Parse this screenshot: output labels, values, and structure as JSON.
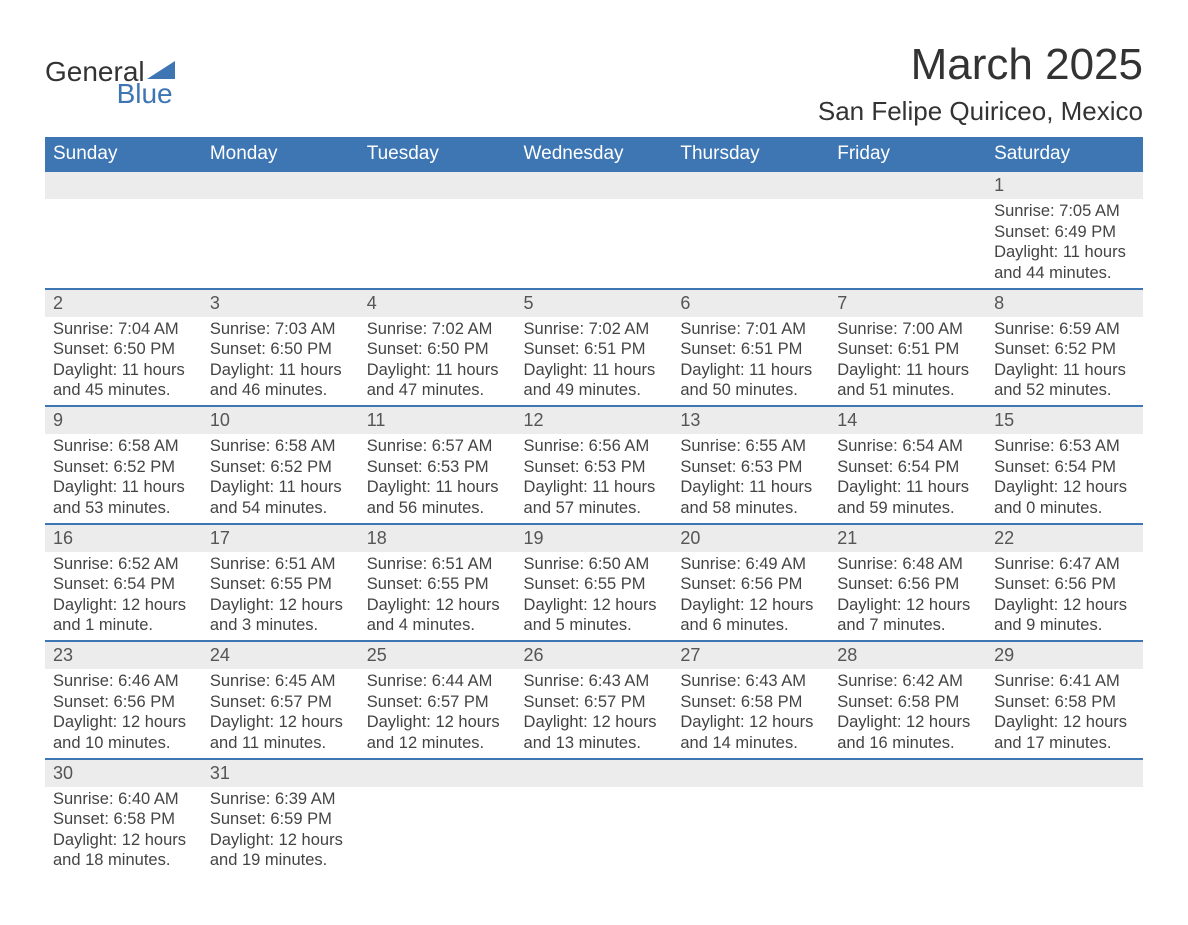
{
  "brand": {
    "name_top": "General",
    "name_bottom": "Blue",
    "accent_color": "#3d76b3",
    "text_color": "#333333"
  },
  "title": "March 2025",
  "location": "San Felipe Quiriceo, Mexico",
  "colors": {
    "header_bg": "#3d76b3",
    "header_text": "#ffffff",
    "daynum_bg": "#ececec",
    "row_border": "#3d76b3",
    "body_text": "#444444",
    "page_bg": "#ffffff"
  },
  "typography": {
    "title_fontsize": 44,
    "location_fontsize": 26,
    "weekday_fontsize": 19,
    "daynum_fontsize": 18,
    "detail_fontsize": 16.5
  },
  "calendar": {
    "type": "table",
    "columns": [
      "Sunday",
      "Monday",
      "Tuesday",
      "Wednesday",
      "Thursday",
      "Friday",
      "Saturday"
    ],
    "weeks": [
      [
        null,
        null,
        null,
        null,
        null,
        null,
        {
          "day": "1",
          "sunrise": "Sunrise: 7:05 AM",
          "sunset": "Sunset: 6:49 PM",
          "daylight1": "Daylight: 11 hours",
          "daylight2": "and 44 minutes."
        }
      ],
      [
        {
          "day": "2",
          "sunrise": "Sunrise: 7:04 AM",
          "sunset": "Sunset: 6:50 PM",
          "daylight1": "Daylight: 11 hours",
          "daylight2": "and 45 minutes."
        },
        {
          "day": "3",
          "sunrise": "Sunrise: 7:03 AM",
          "sunset": "Sunset: 6:50 PM",
          "daylight1": "Daylight: 11 hours",
          "daylight2": "and 46 minutes."
        },
        {
          "day": "4",
          "sunrise": "Sunrise: 7:02 AM",
          "sunset": "Sunset: 6:50 PM",
          "daylight1": "Daylight: 11 hours",
          "daylight2": "and 47 minutes."
        },
        {
          "day": "5",
          "sunrise": "Sunrise: 7:02 AM",
          "sunset": "Sunset: 6:51 PM",
          "daylight1": "Daylight: 11 hours",
          "daylight2": "and 49 minutes."
        },
        {
          "day": "6",
          "sunrise": "Sunrise: 7:01 AM",
          "sunset": "Sunset: 6:51 PM",
          "daylight1": "Daylight: 11 hours",
          "daylight2": "and 50 minutes."
        },
        {
          "day": "7",
          "sunrise": "Sunrise: 7:00 AM",
          "sunset": "Sunset: 6:51 PM",
          "daylight1": "Daylight: 11 hours",
          "daylight2": "and 51 minutes."
        },
        {
          "day": "8",
          "sunrise": "Sunrise: 6:59 AM",
          "sunset": "Sunset: 6:52 PM",
          "daylight1": "Daylight: 11 hours",
          "daylight2": "and 52 minutes."
        }
      ],
      [
        {
          "day": "9",
          "sunrise": "Sunrise: 6:58 AM",
          "sunset": "Sunset: 6:52 PM",
          "daylight1": "Daylight: 11 hours",
          "daylight2": "and 53 minutes."
        },
        {
          "day": "10",
          "sunrise": "Sunrise: 6:58 AM",
          "sunset": "Sunset: 6:52 PM",
          "daylight1": "Daylight: 11 hours",
          "daylight2": "and 54 minutes."
        },
        {
          "day": "11",
          "sunrise": "Sunrise: 6:57 AM",
          "sunset": "Sunset: 6:53 PM",
          "daylight1": "Daylight: 11 hours",
          "daylight2": "and 56 minutes."
        },
        {
          "day": "12",
          "sunrise": "Sunrise: 6:56 AM",
          "sunset": "Sunset: 6:53 PM",
          "daylight1": "Daylight: 11 hours",
          "daylight2": "and 57 minutes."
        },
        {
          "day": "13",
          "sunrise": "Sunrise: 6:55 AM",
          "sunset": "Sunset: 6:53 PM",
          "daylight1": "Daylight: 11 hours",
          "daylight2": "and 58 minutes."
        },
        {
          "day": "14",
          "sunrise": "Sunrise: 6:54 AM",
          "sunset": "Sunset: 6:54 PM",
          "daylight1": "Daylight: 11 hours",
          "daylight2": "and 59 minutes."
        },
        {
          "day": "15",
          "sunrise": "Sunrise: 6:53 AM",
          "sunset": "Sunset: 6:54 PM",
          "daylight1": "Daylight: 12 hours",
          "daylight2": "and 0 minutes."
        }
      ],
      [
        {
          "day": "16",
          "sunrise": "Sunrise: 6:52 AM",
          "sunset": "Sunset: 6:54 PM",
          "daylight1": "Daylight: 12 hours",
          "daylight2": "and 1 minute."
        },
        {
          "day": "17",
          "sunrise": "Sunrise: 6:51 AM",
          "sunset": "Sunset: 6:55 PM",
          "daylight1": "Daylight: 12 hours",
          "daylight2": "and 3 minutes."
        },
        {
          "day": "18",
          "sunrise": "Sunrise: 6:51 AM",
          "sunset": "Sunset: 6:55 PM",
          "daylight1": "Daylight: 12 hours",
          "daylight2": "and 4 minutes."
        },
        {
          "day": "19",
          "sunrise": "Sunrise: 6:50 AM",
          "sunset": "Sunset: 6:55 PM",
          "daylight1": "Daylight: 12 hours",
          "daylight2": "and 5 minutes."
        },
        {
          "day": "20",
          "sunrise": "Sunrise: 6:49 AM",
          "sunset": "Sunset: 6:56 PM",
          "daylight1": "Daylight: 12 hours",
          "daylight2": "and 6 minutes."
        },
        {
          "day": "21",
          "sunrise": "Sunrise: 6:48 AM",
          "sunset": "Sunset: 6:56 PM",
          "daylight1": "Daylight: 12 hours",
          "daylight2": "and 7 minutes."
        },
        {
          "day": "22",
          "sunrise": "Sunrise: 6:47 AM",
          "sunset": "Sunset: 6:56 PM",
          "daylight1": "Daylight: 12 hours",
          "daylight2": "and 9 minutes."
        }
      ],
      [
        {
          "day": "23",
          "sunrise": "Sunrise: 6:46 AM",
          "sunset": "Sunset: 6:56 PM",
          "daylight1": "Daylight: 12 hours",
          "daylight2": "and 10 minutes."
        },
        {
          "day": "24",
          "sunrise": "Sunrise: 6:45 AM",
          "sunset": "Sunset: 6:57 PM",
          "daylight1": "Daylight: 12 hours",
          "daylight2": "and 11 minutes."
        },
        {
          "day": "25",
          "sunrise": "Sunrise: 6:44 AM",
          "sunset": "Sunset: 6:57 PM",
          "daylight1": "Daylight: 12 hours",
          "daylight2": "and 12 minutes."
        },
        {
          "day": "26",
          "sunrise": "Sunrise: 6:43 AM",
          "sunset": "Sunset: 6:57 PM",
          "daylight1": "Daylight: 12 hours",
          "daylight2": "and 13 minutes."
        },
        {
          "day": "27",
          "sunrise": "Sunrise: 6:43 AM",
          "sunset": "Sunset: 6:58 PM",
          "daylight1": "Daylight: 12 hours",
          "daylight2": "and 14 minutes."
        },
        {
          "day": "28",
          "sunrise": "Sunrise: 6:42 AM",
          "sunset": "Sunset: 6:58 PM",
          "daylight1": "Daylight: 12 hours",
          "daylight2": "and 16 minutes."
        },
        {
          "day": "29",
          "sunrise": "Sunrise: 6:41 AM",
          "sunset": "Sunset: 6:58 PM",
          "daylight1": "Daylight: 12 hours",
          "daylight2": "and 17 minutes."
        }
      ],
      [
        {
          "day": "30",
          "sunrise": "Sunrise: 6:40 AM",
          "sunset": "Sunset: 6:58 PM",
          "daylight1": "Daylight: 12 hours",
          "daylight2": "and 18 minutes."
        },
        {
          "day": "31",
          "sunrise": "Sunrise: 6:39 AM",
          "sunset": "Sunset: 6:59 PM",
          "daylight1": "Daylight: 12 hours",
          "daylight2": "and 19 minutes."
        },
        null,
        null,
        null,
        null,
        null
      ]
    ]
  }
}
